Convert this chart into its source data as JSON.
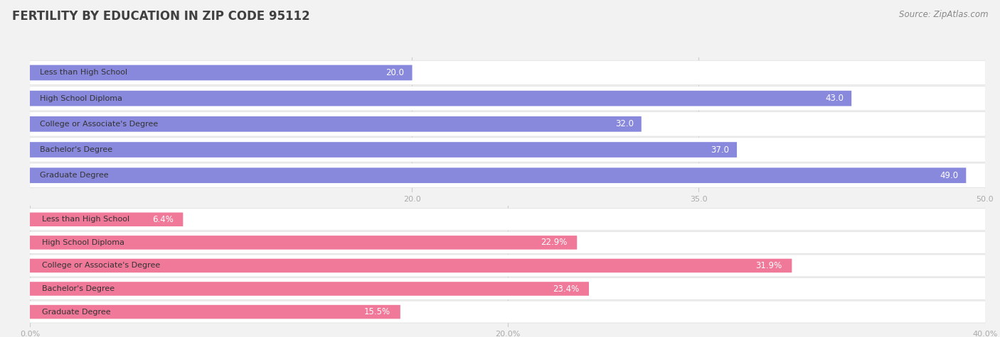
{
  "title": "FERTILITY BY EDUCATION IN ZIP CODE 95112",
  "source": "Source: ZipAtlas.com",
  "top_chart": {
    "categories": [
      "Less than High School",
      "High School Diploma",
      "College or Associate's Degree",
      "Bachelor's Degree",
      "Graduate Degree"
    ],
    "values": [
      20.0,
      43.0,
      32.0,
      37.0,
      49.0
    ],
    "labels": [
      "20.0",
      "43.0",
      "32.0",
      "37.0",
      "49.0"
    ],
    "bar_color": "#8888dd",
    "label_color_inside": "#ffffff",
    "label_color_outside": "#555555",
    "xlim": [
      0,
      50
    ],
    "xticks": [
      20.0,
      35.0,
      50.0
    ],
    "xtick_labels": [
      "20.0",
      "35.0",
      "50.0"
    ],
    "inside_threshold": 8
  },
  "bottom_chart": {
    "categories": [
      "Less than High School",
      "High School Diploma",
      "College or Associate's Degree",
      "Bachelor's Degree",
      "Graduate Degree"
    ],
    "values": [
      6.4,
      22.9,
      31.9,
      23.4,
      15.5
    ],
    "labels": [
      "6.4%",
      "22.9%",
      "31.9%",
      "23.4%",
      "15.5%"
    ],
    "bar_color": "#f07898",
    "label_color_inside": "#ffffff",
    "label_color_outside": "#555555",
    "xlim": [
      0,
      40
    ],
    "xticks": [
      0.0,
      20.0,
      40.0
    ],
    "xtick_labels": [
      "0.0%",
      "20.0%",
      "40.0%"
    ],
    "inside_threshold": 5
  },
  "bg_color": "#f2f2f2",
  "bar_bg_color": "#ffffff",
  "label_fontsize": 8.5,
  "category_fontsize": 8,
  "title_fontsize": 12,
  "source_fontsize": 8.5,
  "tick_fontsize": 8,
  "title_color": "#404040",
  "source_color": "#888888",
  "tick_color": "#aaaaaa",
  "bar_height": 0.58,
  "category_label_color": "#333333"
}
